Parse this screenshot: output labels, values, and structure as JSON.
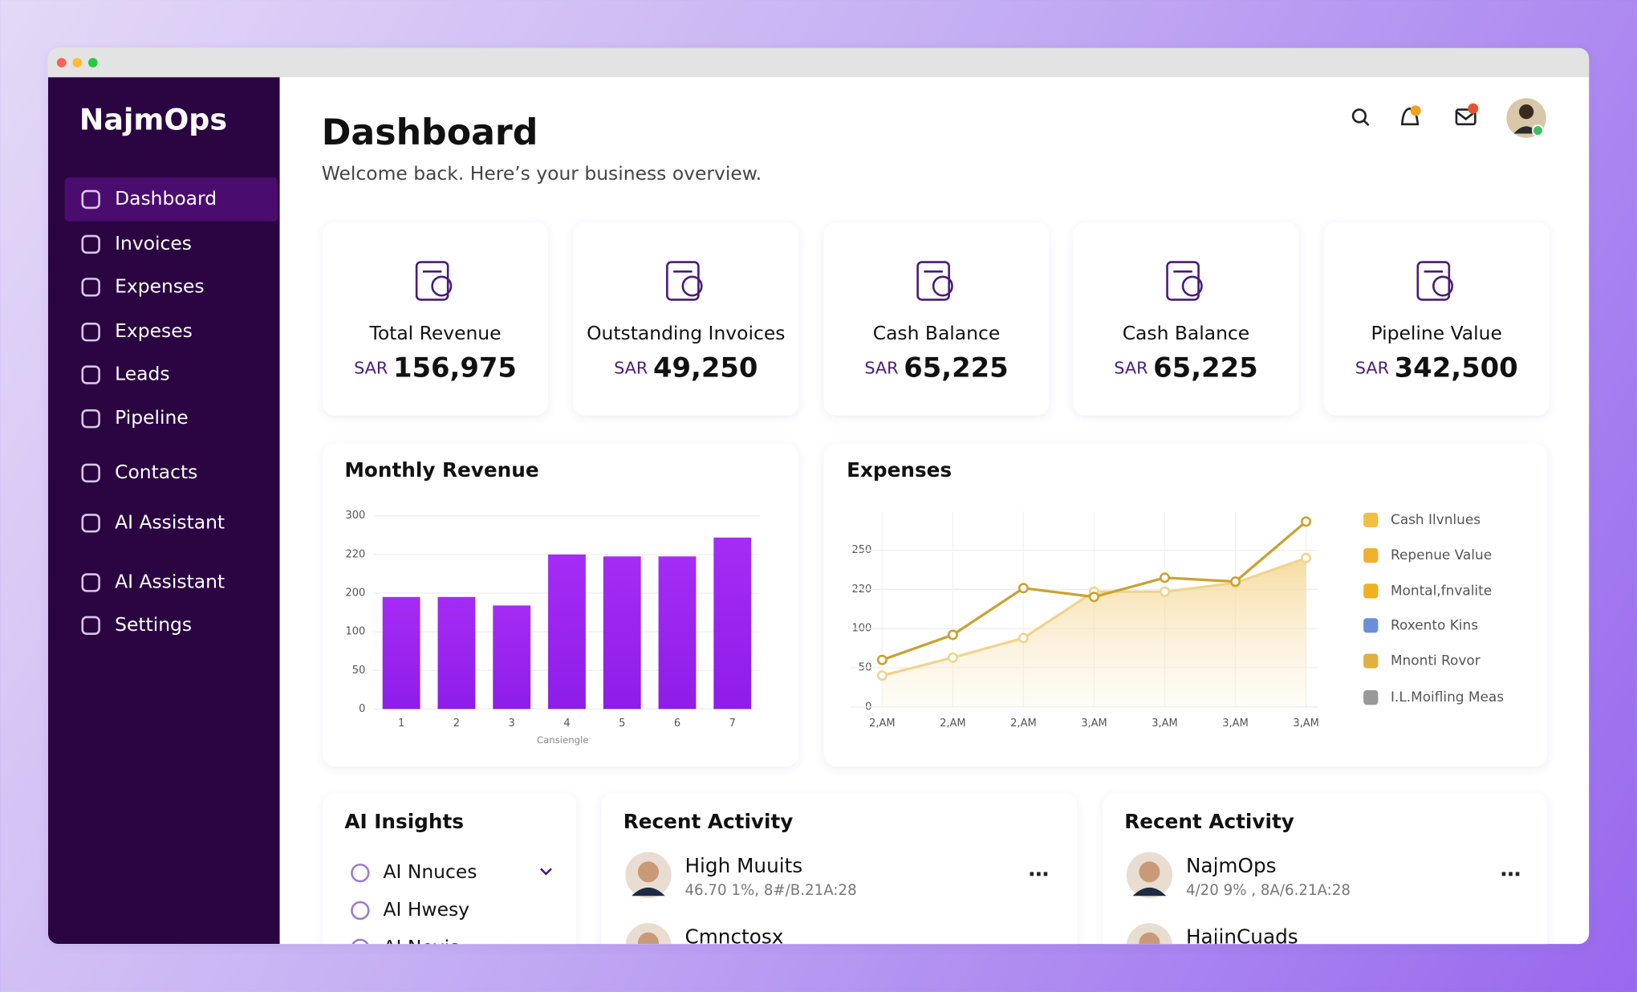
{
  "sidebar": {
    "brand": "NajmOps",
    "nav": [
      "Dashboard",
      "Invoices",
      "Expenses",
      "Expeses",
      "Leads",
      "Pipeline",
      "Contacts",
      "AI Assistant",
      "AI Assistant",
      "Settings"
    ],
    "active": 0
  },
  "header": {
    "title": "Dashboard",
    "subtitle": "Welcome back. Here’s your business overview."
  },
  "kpis": [
    {
      "label": "Total Revenue",
      "currency": "SAR",
      "value": "156,975"
    },
    {
      "label": "Outstanding Invoices",
      "currency": "SAR",
      "value": "49,250"
    },
    {
      "label": "Cash Balance",
      "currency": "SAR",
      "value": "65,225"
    },
    {
      "label": "Cash Balance",
      "currency": "SAR",
      "value": "65,225"
    },
    {
      "label": "Pipeline Value",
      "currency": "SAR",
      "value": "342,500"
    }
  ],
  "revenue_chart": {
    "type": "bar",
    "title": "Monthly Revenue",
    "categories": [
      "1",
      "2",
      "3",
      "4",
      "5",
      "6",
      "7"
    ],
    "values": [
      190,
      190,
      168,
      220,
      219,
      219,
      255
    ],
    "color": "#9b20f0",
    "ylim": [
      0,
      300
    ],
    "yticks": [
      0,
      50,
      100,
      200,
      220,
      300
    ],
    "x_label": "Cansiengle",
    "grid": true
  },
  "expenses_chart": {
    "type": "line",
    "title": "Expenses",
    "categories": [
      "2,AM",
      "2,AM",
      "2,AM",
      "3,AM",
      "3,AM",
      "3,AM",
      "3,AM"
    ],
    "series": [
      {
        "color": "#c9a230",
        "values": [
          60,
          92,
          221,
          197,
          229,
          226,
          272
        ]
      },
      {
        "color": "#efd48c",
        "values": [
          40,
          63,
          88,
          213,
          213,
          225,
          244
        ],
        "area": true
      }
    ],
    "ylim": [
      0,
      280
    ],
    "yticks": [
      0,
      50,
      100,
      220,
      250
    ],
    "grid": true,
    "legend": [
      "Cash Ilvnlues",
      "Repenue Value",
      "Montal,fnvalite",
      "Roxento Kins",
      "Mnonti Rovor",
      "I.L.Moifling Meas"
    ]
  },
  "insights": {
    "title": "AI Insights",
    "items": [
      "AI Nnuces",
      "AI Hwesy",
      "AI Nevis"
    ]
  },
  "activity": [
    {
      "title": "Recent Activity",
      "items": [
        {
          "name": "High Muuits",
          "detail": "46.70 1%, 8#/B.21A:28"
        },
        {
          "name": "Cmnctosx"
        }
      ]
    },
    {
      "title": "Recent Activity",
      "items": [
        {
          "name": "NajmOps",
          "detail": "4/20 9% , 8A/6.21A:28"
        },
        {
          "name": "HajinCuads"
        }
      ]
    }
  ]
}
